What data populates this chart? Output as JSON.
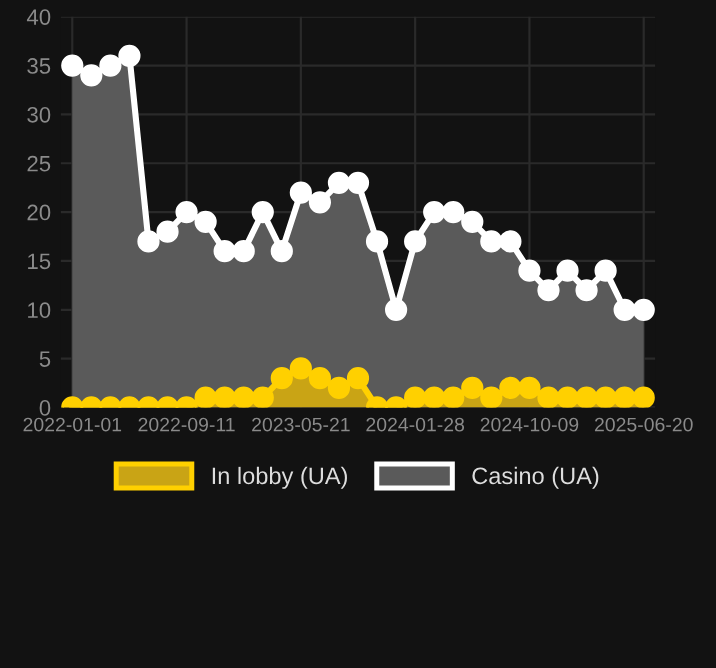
{
  "chart_data": {
    "type": "area",
    "categories": [
      "2022-01-01",
      null,
      null,
      null,
      null,
      null,
      "2022-09-11",
      null,
      null,
      null,
      null,
      null,
      "2023-05-21",
      null,
      null,
      null,
      null,
      null,
      "2024-01-28",
      null,
      null,
      null,
      null,
      null,
      "2024-10-09",
      null,
      null,
      null,
      null,
      null,
      "2025-06-20"
    ],
    "series": [
      {
        "name": "In lobby (UA)",
        "color": "#ffd000",
        "values": [
          0,
          0,
          0,
          0,
          0,
          0,
          0,
          1,
          1,
          1,
          1,
          3,
          4,
          3,
          2,
          3,
          0,
          0,
          1,
          1,
          1,
          2,
          1,
          2,
          2,
          1,
          1,
          1,
          1,
          1,
          1
        ]
      },
      {
        "name": "Casino (UA)",
        "color": "#ffffff",
        "values": [
          35,
          34,
          35,
          36,
          17,
          18,
          20,
          19,
          16,
          16,
          20,
          16,
          22,
          21,
          23,
          23,
          17,
          10,
          17,
          20,
          20,
          19,
          17,
          17,
          14,
          12,
          14,
          12,
          14,
          10,
          10
        ]
      }
    ],
    "ylim": [
      0,
      40
    ],
    "yticks": [
      0,
      5,
      10,
      15,
      20,
      25,
      30,
      35,
      40
    ],
    "grid": true,
    "legend": "bottom",
    "marker": "circle",
    "line_style": "solid"
  }
}
